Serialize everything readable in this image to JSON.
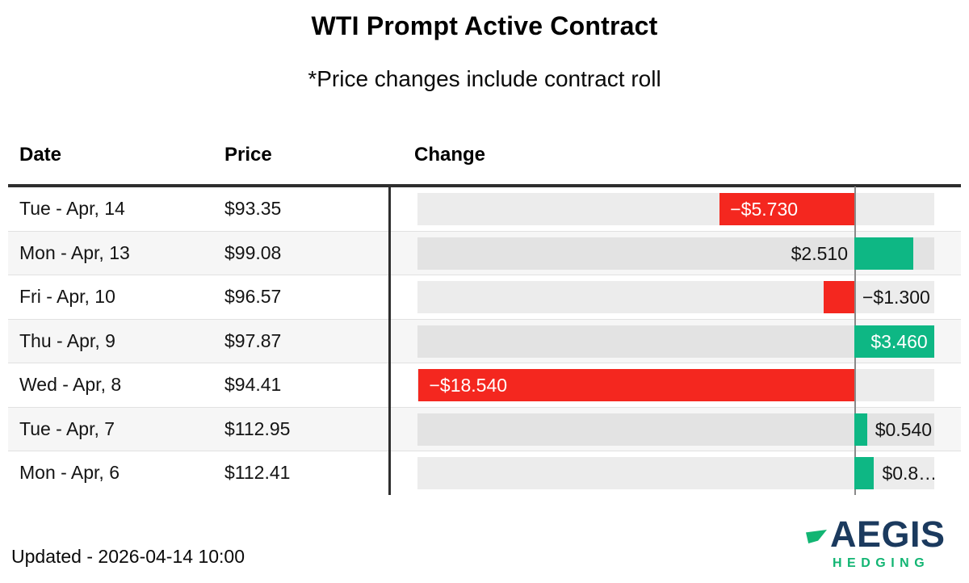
{
  "title": "WTI Prompt Active Contract",
  "subtitle": "*Price changes include contract roll",
  "columns": {
    "date": "Date",
    "price": "Price",
    "change": "Change"
  },
  "footer": {
    "updated": "Updated - 2026-04-14 10:00"
  },
  "logo": {
    "wordmark": "AEGIS",
    "subtext": "HEDGING",
    "flag_icon": "aegis-flag-icon"
  },
  "colors": {
    "negative": "#f4271f",
    "positive": "#0eb784",
    "logo_navy": "#1b3a5e",
    "logo_green": "#12b573",
    "stripe": "#f6f6f6",
    "track_light": "#ececec",
    "track_dark": "#e3e3e3"
  },
  "chart_data": {
    "type": "bar",
    "orientation": "horizontal",
    "title": "WTI Prompt Active Contract",
    "subtitle": "*Price changes include contract roll",
    "value_unit": "USD",
    "xlim": [
      -18.54,
      3.46
    ],
    "baseline": 0,
    "grid": false,
    "legend": "none",
    "rows": [
      {
        "date": "Tue - Apr, 14",
        "price": "$93.35",
        "change": -5.73,
        "label": "−$5.730",
        "label_pos": "inside-start"
      },
      {
        "date": "Mon - Apr, 13",
        "price": "$99.08",
        "change": 2.51,
        "label": "$2.510",
        "label_pos": "outside-left"
      },
      {
        "date": "Fri - Apr, 10",
        "price": "$96.57",
        "change": -1.3,
        "label": "−$1.300",
        "label_pos": "outside-right"
      },
      {
        "date": "Thu - Apr, 9",
        "price": "$97.87",
        "change": 3.46,
        "label": "$3.460",
        "label_pos": "inside-end"
      },
      {
        "date": "Wed - Apr, 8",
        "price": "$94.41",
        "change": -18.54,
        "label": "−$18.540",
        "label_pos": "inside-start"
      },
      {
        "date": "Tue - Apr, 7",
        "price": "$112.95",
        "change": 0.54,
        "label": "$0.540",
        "label_pos": "outside-right"
      },
      {
        "date": "Mon - Apr, 6",
        "price": "$112.41",
        "change": 0.84,
        "label": "$0.8…",
        "label_pos": "outside-right"
      }
    ]
  }
}
